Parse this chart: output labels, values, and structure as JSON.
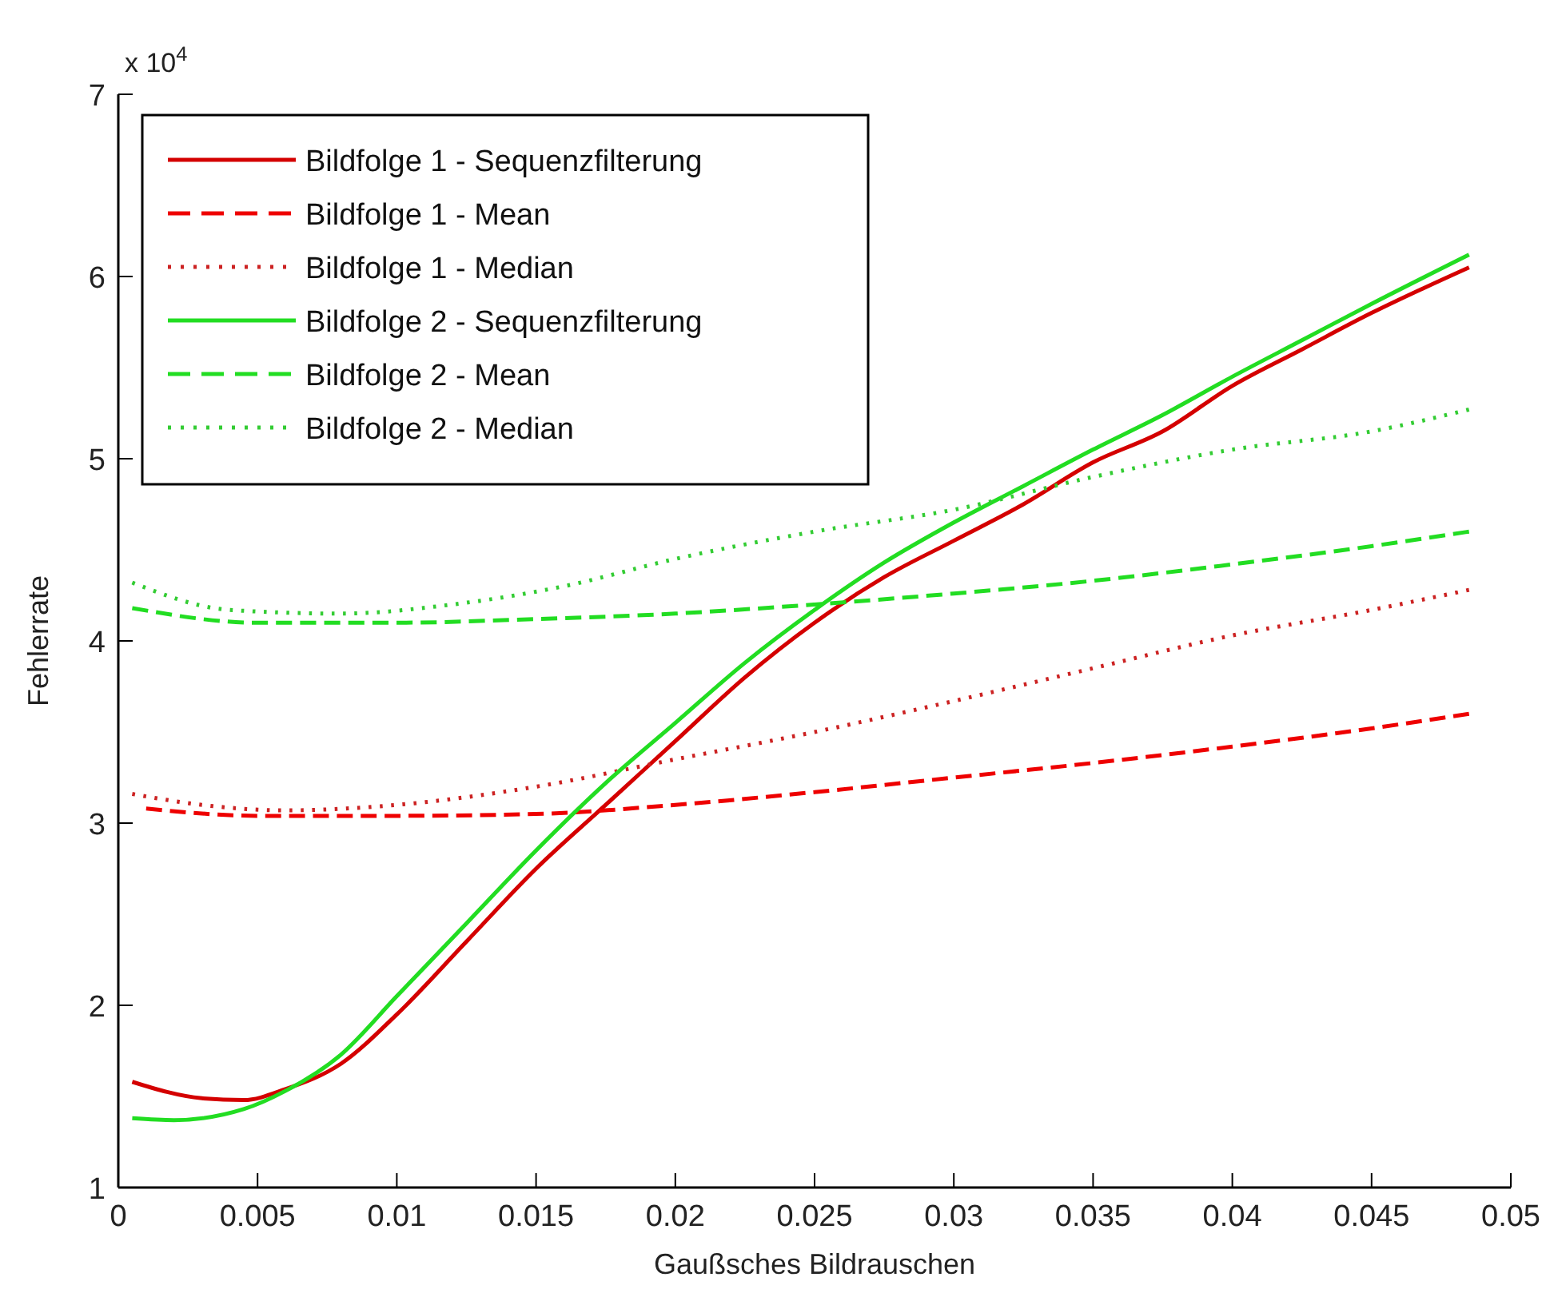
{
  "chart_data": {
    "type": "line",
    "xlabel": "Gaußsches Bildrauschen",
    "ylabel": "Fehlerrate",
    "annotations": [
      "x 10$^{4}$"
    ],
    "xlim": [
      0,
      0.05
    ],
    "xticks": [
      0,
      0.005,
      0.01,
      0.015,
      0.02,
      0.025,
      0.03,
      0.035,
      0.04,
      0.045,
      0.05
    ],
    "ylim": [
      1,
      7
    ],
    "yticks": [
      1,
      2,
      3,
      4,
      5,
      6,
      7
    ],
    "grid": false,
    "legend": "top left",
    "marker": "none",
    "series": [
      {
        "name": "Bildfolge 1 - Sequenzfilterung",
        "color": "#d40000",
        "line_style": "solid",
        "x": [
          0.0005,
          0.003,
          0.0045,
          0.006,
          0.008,
          0.01,
          0.0125,
          0.015,
          0.0175,
          0.02,
          0.0225,
          0.025,
          0.0275,
          0.03,
          0.0325,
          0.035,
          0.0375,
          0.04,
          0.0425,
          0.045,
          0.0485
        ],
        "values": [
          1.58,
          1.49,
          1.48,
          1.54,
          1.68,
          1.95,
          2.35,
          2.75,
          3.1,
          3.45,
          3.8,
          4.1,
          4.35,
          4.55,
          4.75,
          4.98,
          5.15,
          5.4,
          5.6,
          5.8,
          6.05
        ]
      },
      {
        "name": "Bildfolge 1 - Mean",
        "color": "#ee0000",
        "line_style": "dashed",
        "x": [
          0.001,
          0.005,
          0.01,
          0.015,
          0.02,
          0.025,
          0.03,
          0.035,
          0.04,
          0.045,
          0.0485
        ],
        "values": [
          3.08,
          3.04,
          3.04,
          3.05,
          3.1,
          3.17,
          3.25,
          3.33,
          3.42,
          3.52,
          3.6
        ]
      },
      {
        "name": "Bildfolge 1 - Median",
        "color": "#cc2222",
        "line_style": "dotted",
        "x": [
          0.0005,
          0.003,
          0.006,
          0.01,
          0.015,
          0.02,
          0.025,
          0.03,
          0.035,
          0.04,
          0.045,
          0.0485
        ],
        "values": [
          3.16,
          3.1,
          3.07,
          3.1,
          3.2,
          3.35,
          3.5,
          3.67,
          3.85,
          4.03,
          4.17,
          4.28
        ]
      },
      {
        "name": "Bildfolge 2 - Sequenzfilterung",
        "color": "#22dd22",
        "line_style": "solid",
        "x": [
          0.0005,
          0.002,
          0.0045,
          0.006,
          0.008,
          0.01,
          0.0125,
          0.015,
          0.0175,
          0.02,
          0.0225,
          0.025,
          0.0275,
          0.03,
          0.0325,
          0.035,
          0.0375,
          0.04,
          0.0425,
          0.045,
          0.0485
        ],
        "values": [
          1.38,
          1.37,
          1.43,
          1.53,
          1.73,
          2.05,
          2.45,
          2.85,
          3.22,
          3.55,
          3.88,
          4.17,
          4.43,
          4.65,
          4.85,
          5.05,
          5.24,
          5.45,
          5.65,
          5.85,
          6.12
        ]
      },
      {
        "name": "Bildfolge 2 - Mean",
        "color": "#22dd22",
        "line_style": "dashed",
        "x": [
          0.0005,
          0.005,
          0.01,
          0.015,
          0.02,
          0.025,
          0.03,
          0.035,
          0.04,
          0.045,
          0.0485
        ],
        "values": [
          4.18,
          4.1,
          4.1,
          4.12,
          4.15,
          4.2,
          4.26,
          4.33,
          4.42,
          4.52,
          4.6
        ]
      },
      {
        "name": "Bildfolge 2 - Median",
        "color": "#33cc33",
        "line_style": "dotted",
        "x": [
          0.0005,
          0.004,
          0.008,
          0.012,
          0.016,
          0.02,
          0.025,
          0.03,
          0.035,
          0.04,
          0.045,
          0.0485
        ],
        "values": [
          4.32,
          4.17,
          4.15,
          4.2,
          4.3,
          4.45,
          4.6,
          4.72,
          4.9,
          5.05,
          5.15,
          5.27
        ]
      }
    ]
  }
}
